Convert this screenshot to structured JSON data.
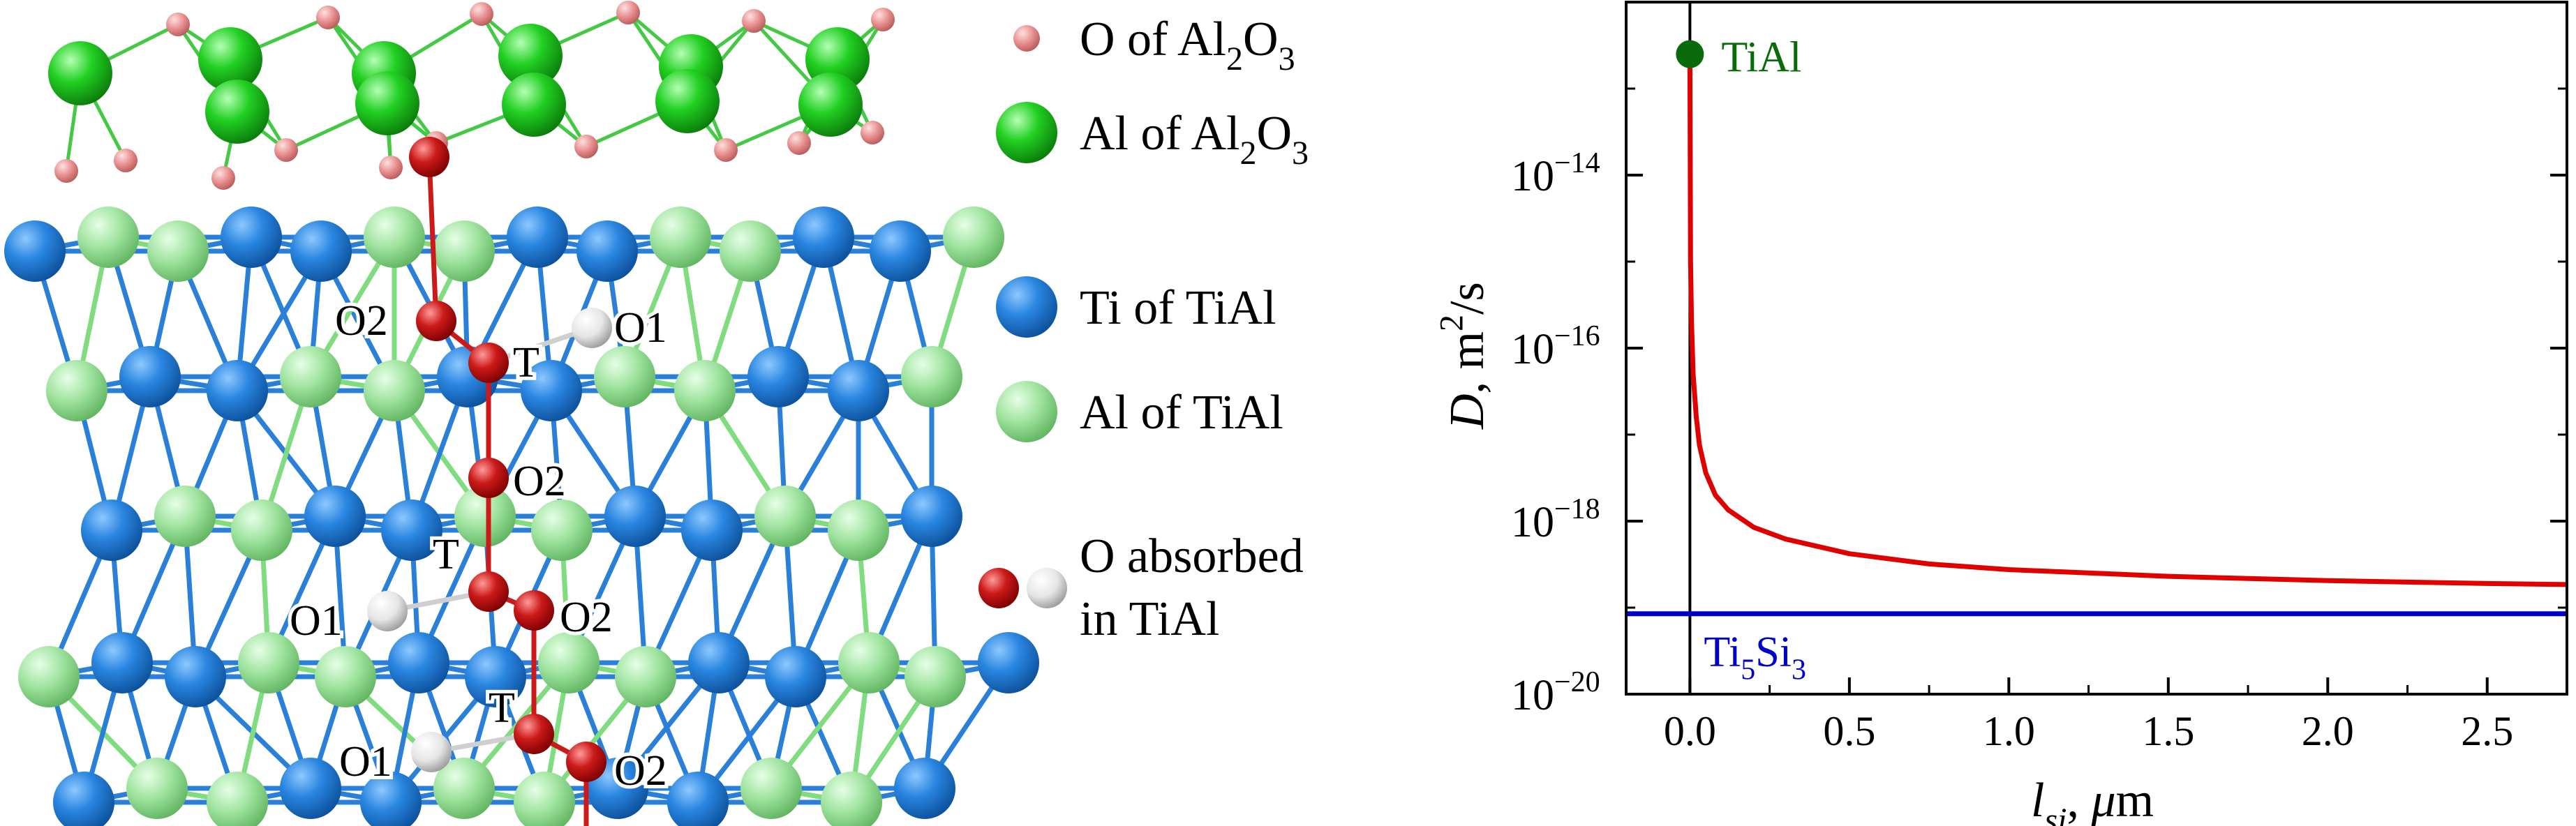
{
  "legend": {
    "items": [
      {
        "id": "o-al2o3",
        "color": "#e58a8a",
        "parts": [
          {
            "t": "O of Al"
          },
          {
            "t": "2",
            "sub": true
          },
          {
            "t": "O"
          },
          {
            "t": "3",
            "sub": true
          }
        ]
      },
      {
        "id": "al-al2o3",
        "color": "#1fcc1f",
        "parts": [
          {
            "t": "Al of Al"
          },
          {
            "t": "2",
            "sub": true
          },
          {
            "t": "O"
          },
          {
            "t": "3",
            "sub": true
          }
        ]
      },
      {
        "id": "ti-tial",
        "color": "#1a73d1",
        "parts": [
          {
            "t": "Ti of TiAl"
          }
        ]
      },
      {
        "id": "al-tial",
        "color": "#8fe08f",
        "parts": [
          {
            "t": "Al of TiAl"
          }
        ]
      },
      {
        "id": "o-absorbed",
        "color": "#c41a1a",
        "color2": "#ececec",
        "lines": [
          "O absorbed",
          "in TiAl"
        ]
      }
    ]
  },
  "structure": {
    "site_labels": [
      "O2",
      "T",
      "O1",
      "O2",
      "T",
      "O1",
      "O2",
      "T",
      "O1",
      "O2"
    ]
  },
  "chart_data": {
    "type": "line",
    "xlabel_parts": [
      {
        "t": "l",
        "i": true
      },
      {
        "t": "si",
        "i": true,
        "sub": true
      },
      {
        "t": ", "
      },
      {
        "t": "μ",
        "i": true
      },
      {
        "t": "m"
      }
    ],
    "ylabel_parts": [
      {
        "t": "D",
        "i": true
      },
      {
        "t": ", m"
      },
      {
        "t": "2",
        "sup": true
      },
      {
        "t": "/s"
      }
    ],
    "xlim": [
      -0.2,
      2.75
    ],
    "ylim": [
      1e-20,
      1e-12
    ],
    "yscale": "log",
    "xticks": [
      0.0,
      0.5,
      1.0,
      1.5,
      2.0,
      2.5
    ],
    "xtick_labels": [
      "0.0",
      "0.5",
      "1.0",
      "1.5",
      "2.0",
      "2.5"
    ],
    "yticks": [
      1e-20,
      1e-18,
      1e-16,
      1e-14
    ],
    "ytick_labels": [
      {
        "base": "10",
        "exp": "−20"
      },
      {
        "base": "10",
        "exp": "−18"
      },
      {
        "base": "10",
        "exp": "−16"
      },
      {
        "base": "10",
        "exp": "−14"
      }
    ],
    "series": [
      {
        "color": "#e00000",
        "x": [
          0.0,
          0.002,
          0.005,
          0.01,
          0.02,
          0.03,
          0.05,
          0.08,
          0.12,
          0.2,
          0.3,
          0.5,
          0.75,
          1.0,
          1.5,
          2.0,
          2.5,
          2.75
        ],
        "y": [
          2e-13,
          1e-15,
          2e-16,
          5e-17,
          1.6e-17,
          7.5e-18,
          3.6e-18,
          2e-18,
          1.35e-18,
          8.5e-19,
          6.2e-19,
          4.2e-19,
          3.2e-19,
          2.75e-19,
          2.3e-19,
          2.05e-19,
          1.9e-19,
          1.85e-19
        ]
      },
      {
        "color": "#0000cc",
        "x": [
          -0.2,
          2.75
        ],
        "y": [
          8.5e-20,
          8.5e-20
        ]
      }
    ],
    "points": [
      {
        "x": 0.0,
        "y": 2.5e-13,
        "color": "#0a6b0a"
      }
    ],
    "vline": {
      "x": 0.0,
      "color": "#000000"
    },
    "annotations": [
      {
        "id": "tial",
        "color": "#0a6b0a",
        "x": 0.0,
        "y": 2.5e-13,
        "parts": [
          {
            "t": "TiAl"
          }
        ]
      },
      {
        "id": "ti5si3",
        "color": "#0000cc",
        "x": 0.0,
        "y": 8.5e-20,
        "parts": [
          {
            "t": "Ti"
          },
          {
            "t": "5",
            "sub": true
          },
          {
            "t": "Si"
          },
          {
            "t": "3",
            "sub": true
          }
        ]
      }
    ]
  }
}
